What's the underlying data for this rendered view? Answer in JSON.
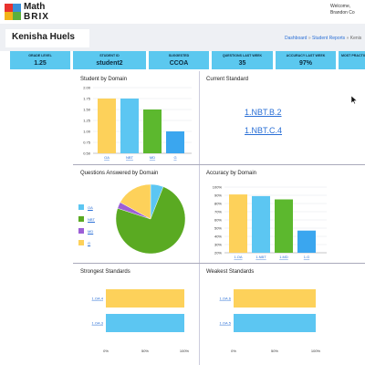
{
  "header": {
    "logo_line1": "Math",
    "logo_line2": "BRIX",
    "logo_colors": [
      "#e8322e",
      "#3a8fd8",
      "#f2b318",
      "#5bb03c"
    ],
    "welcome_line1": "Welcome,",
    "welcome_line2": "Brandon Co"
  },
  "student_name": "Kenisha Huels",
  "breadcrumb": {
    "dashboard": "Dashboard",
    "sep1": "»",
    "student_reports": "Student Reports",
    "sep2": "»",
    "current": "Kenis"
  },
  "stats": [
    {
      "label": "GRADE LEVEL",
      "value": "1.25"
    },
    {
      "label": "STUDENT ID",
      "value": "student2"
    },
    {
      "label": "SUGGESTED",
      "value": "CCOA"
    },
    {
      "label": "QUESTIONS LAST WEEK",
      "value": "35"
    },
    {
      "label": "ACCURACY LAST WEEK",
      "value": "97%"
    },
    {
      "label": "MOST PRACTICED",
      "value": ""
    }
  ],
  "panels": {
    "student_by_domain": {
      "title": "Student by Domain",
      "chart_data": {
        "type": "bar",
        "categories": [
          "OA",
          "NBT",
          "MD",
          "G"
        ],
        "values": [
          1.75,
          1.75,
          1.5,
          1.0
        ],
        "colors": [
          "#fdd15a",
          "#5cc6f2",
          "#5cb82e",
          "#3aa6ef"
        ],
        "ylim": [
          0.5,
          2.0
        ],
        "yticks": [
          "2.00",
          "1.75",
          "1.50",
          "1.25",
          "1.00",
          "0.75",
          "0.50"
        ],
        "grid": true
      }
    },
    "current_standard": {
      "title": "Current Standard",
      "links": [
        "1.NBT.B.2",
        "1.NBT.C.4"
      ]
    },
    "questions_answered": {
      "title": "Questions Answered by Domain",
      "chart_data": {
        "type": "pie",
        "categories": [
          "OA",
          "NBT",
          "MD",
          "G"
        ],
        "values": [
          6,
          74,
          3,
          17
        ],
        "colors": [
          "#5cc6f2",
          "#5aaa22",
          "#9c5fd6",
          "#fdd15a"
        ],
        "legend": "left"
      }
    },
    "accuracy_by_domain": {
      "title": "Accuracy by Domain",
      "chart_data": {
        "type": "bar",
        "categories": [
          "1.OA",
          "1.NBT",
          "1.MD",
          "1.G"
        ],
        "values": [
          91,
          89,
          85,
          47
        ],
        "colors": [
          "#fdd15a",
          "#5cc6f2",
          "#5cb82e",
          "#3aa6ef"
        ],
        "ylim": [
          20,
          100
        ],
        "yticks": [
          "100%",
          "90%",
          "80%",
          "70%",
          "60%",
          "50%",
          "40%",
          "30%",
          "20%"
        ],
        "grid": true
      }
    },
    "strongest_standards": {
      "title": "Strongest Standards",
      "chart_data": {
        "type": "bar",
        "orientation": "horizontal",
        "categories": [
          "1.OA.4",
          "1.OA.3"
        ],
        "values": [
          100,
          100
        ],
        "colors": [
          "#fdd15a",
          "#5cc6f2"
        ],
        "xlim": [
          0,
          100
        ],
        "xticks": [
          "0%",
          "50%",
          "100%"
        ]
      }
    },
    "weakest_standards": {
      "title": "Weakest Standards",
      "chart_data": {
        "type": "bar",
        "orientation": "horizontal",
        "categories": [
          "1.OA.6",
          "1.OA.5"
        ],
        "values": [
          100,
          100
        ],
        "colors": [
          "#fdd15a",
          "#5cc6f2"
        ],
        "xlim": [
          0,
          100
        ],
        "xticks": [
          "0%",
          "50%",
          "100%"
        ]
      }
    }
  }
}
